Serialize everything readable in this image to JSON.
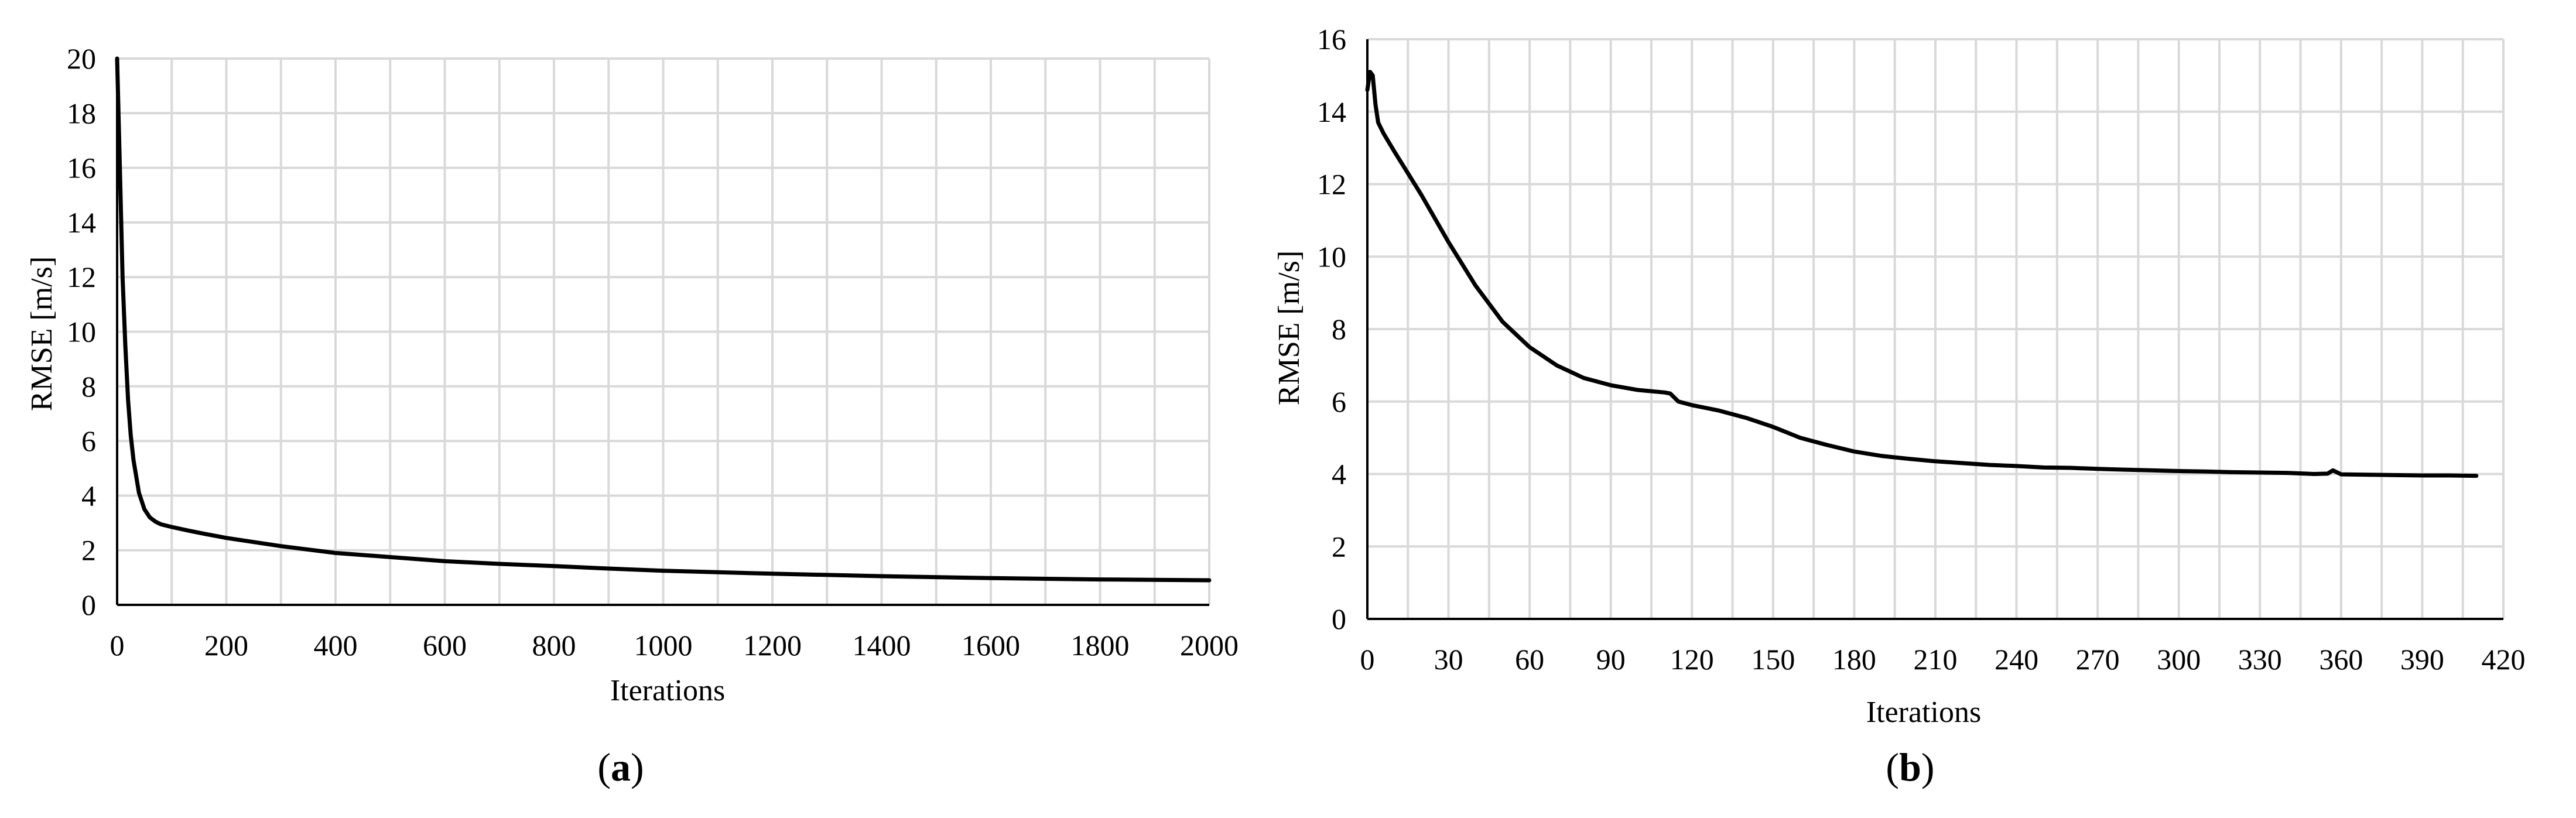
{
  "chart_data": [
    {
      "type": "line",
      "panel_label": {
        "open": "(",
        "letter": "a",
        "close": ")"
      },
      "xlabel": "Iterations",
      "ylabel": "RMSE [m/s]",
      "xlim": [
        0,
        2000
      ],
      "ylim": [
        0,
        20
      ],
      "xticks": [
        0,
        200,
        400,
        600,
        800,
        1000,
        1200,
        1400,
        1600,
        1800,
        2000
      ],
      "yticks": [
        0,
        2,
        4,
        6,
        8,
        10,
        12,
        14,
        16,
        18,
        20
      ],
      "xgrid_step": 100,
      "grid": true,
      "series": [
        {
          "x": [
            0,
            5,
            10,
            15,
            20,
            25,
            30,
            40,
            50,
            60,
            70,
            80,
            100,
            130,
            160,
            200,
            250,
            300,
            400,
            500,
            600,
            700,
            800,
            900,
            1000,
            1200,
            1400,
            1600,
            1800,
            2000
          ],
          "y": [
            20,
            16,
            12,
            9.5,
            7.5,
            6.2,
            5.3,
            4.1,
            3.5,
            3.2,
            3.05,
            2.95,
            2.85,
            2.72,
            2.6,
            2.45,
            2.3,
            2.15,
            1.9,
            1.75,
            1.6,
            1.5,
            1.42,
            1.33,
            1.25,
            1.14,
            1.05,
            0.98,
            0.93,
            0.9
          ]
        }
      ]
    },
    {
      "type": "line",
      "panel_label": {
        "open": "(",
        "letter": "b",
        "close": ")"
      },
      "xlabel": "Iterations",
      "ylabel": "RMSE [m/s]",
      "xlim": [
        0,
        420
      ],
      "ylim": [
        0,
        16
      ],
      "xticks": [
        0,
        30,
        60,
        90,
        120,
        150,
        180,
        210,
        240,
        270,
        300,
        330,
        360,
        390,
        420
      ],
      "yticks": [
        0,
        2,
        4,
        6,
        8,
        10,
        12,
        14,
        16
      ],
      "xgrid_step": 15,
      "grid": true,
      "series": [
        {
          "x": [
            0,
            1,
            2,
            3,
            4,
            6,
            10,
            15,
            20,
            30,
            40,
            50,
            60,
            70,
            80,
            90,
            100,
            110,
            112,
            115,
            120,
            130,
            140,
            150,
            160,
            170,
            180,
            190,
            200,
            210,
            220,
            230,
            240,
            250,
            260,
            270,
            280,
            290,
            300,
            310,
            320,
            330,
            340,
            350,
            355,
            357,
            360,
            370,
            380,
            390,
            400,
            410
          ],
          "y": [
            14.6,
            15.1,
            15.0,
            14.2,
            13.7,
            13.4,
            12.9,
            12.3,
            11.7,
            10.4,
            9.2,
            8.2,
            7.5,
            7.0,
            6.65,
            6.45,
            6.32,
            6.25,
            6.22,
            6.0,
            5.9,
            5.75,
            5.55,
            5.3,
            5.0,
            4.8,
            4.62,
            4.5,
            4.42,
            4.35,
            4.3,
            4.25,
            4.22,
            4.18,
            4.17,
            4.14,
            4.12,
            4.1,
            4.08,
            4.07,
            4.05,
            4.04,
            4.03,
            4.0,
            4.01,
            4.1,
            3.99,
            3.98,
            3.97,
            3.96,
            3.96,
            3.95
          ]
        }
      ]
    }
  ]
}
